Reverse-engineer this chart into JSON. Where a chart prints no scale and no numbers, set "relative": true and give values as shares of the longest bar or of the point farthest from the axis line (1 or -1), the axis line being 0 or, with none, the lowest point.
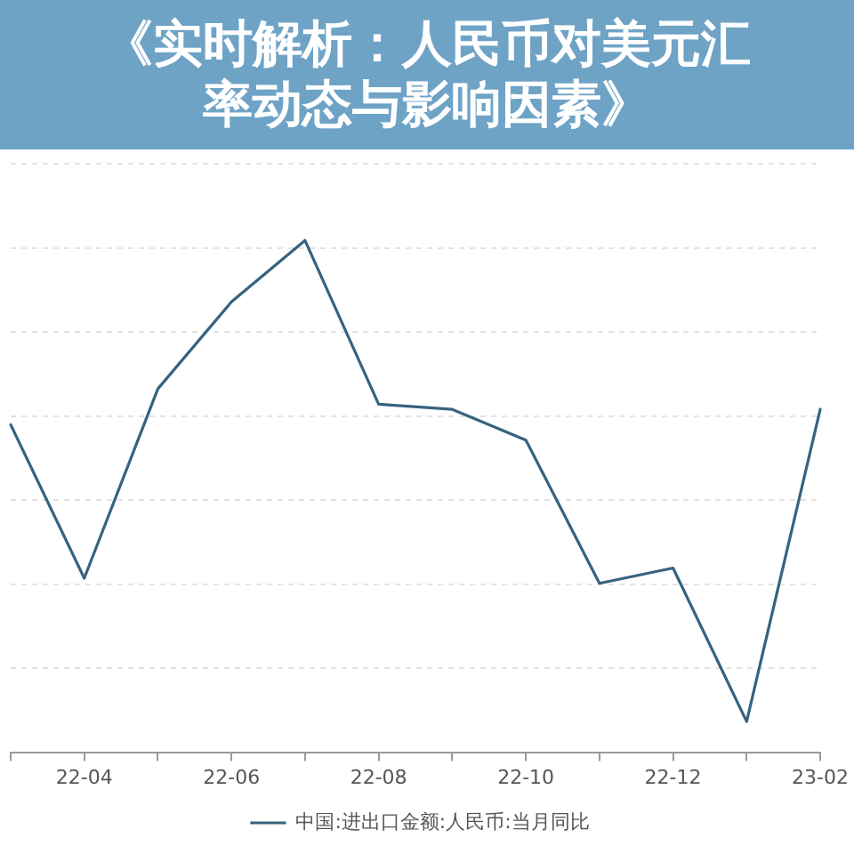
{
  "chart_data": {
    "type": "line",
    "title": "《实时解析：人民币对美元汇率动态与影响因素》",
    "categories": [
      null,
      "22-04",
      null,
      "22-06",
      null,
      "22-08",
      null,
      "22-10",
      null,
      "22-12",
      null,
      "23-02"
    ],
    "series": [
      {
        "name": "中国:进出口金额:人民币:当月同比",
        "color": "#36637f",
        "values": [
          0.64,
          0.34,
          0.71,
          0.88,
          1,
          0.68,
          0.67,
          0.61,
          0.33,
          0.36,
          0.06,
          0.67
        ]
      }
    ],
    "relative": true,
    "grid": "y",
    "legend": "bottom"
  }
}
